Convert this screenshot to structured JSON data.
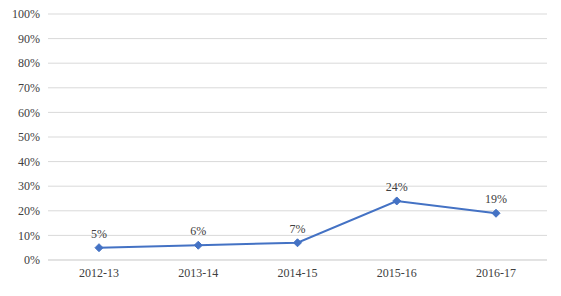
{
  "chart_data": {
    "type": "line",
    "categories": [
      "2012-13",
      "2013-14",
      "2014-15",
      "2015-16",
      "2016-17"
    ],
    "values": [
      5,
      6,
      7,
      24,
      19
    ],
    "value_labels": [
      "5%",
      "6%",
      "7%",
      "24%",
      "19%"
    ],
    "color": "#4472c4",
    "marker": "diamond",
    "ylim": [
      0,
      100
    ],
    "yticks": [
      {
        "value": 0,
        "label": "0%"
      },
      {
        "value": 10,
        "label": "10%"
      },
      {
        "value": 20,
        "label": "20%"
      },
      {
        "value": 30,
        "label": "30%"
      },
      {
        "value": 40,
        "label": "40%"
      },
      {
        "value": 50,
        "label": "50%"
      },
      {
        "value": 60,
        "label": "60%"
      },
      {
        "value": 70,
        "label": "70%"
      },
      {
        "value": 80,
        "label": "80%"
      },
      {
        "value": 90,
        "label": "90%"
      },
      {
        "value": 100,
        "label": "100%"
      }
    ],
    "grid": true,
    "data_labels": true
  }
}
